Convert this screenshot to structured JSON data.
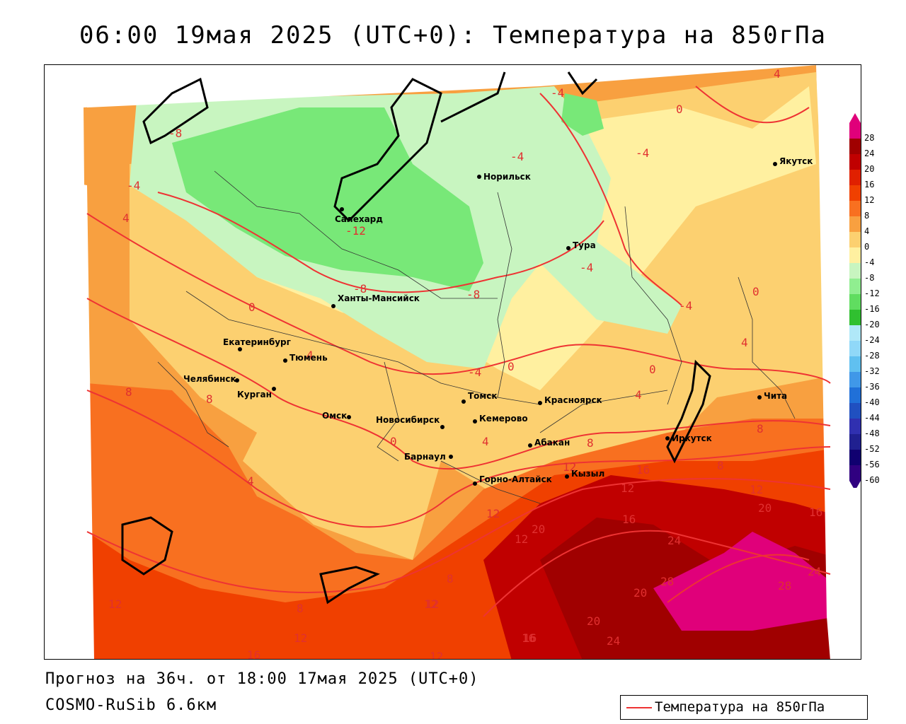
{
  "title": "06:00 19мая 2025 (UTC+0): Температура на 850гПа",
  "footer": {
    "forecast": "Прогноз на 36ч. от 18:00 17мая 2025 (UTC+0)",
    "model": "COSMO-RuSib 6.6км"
  },
  "legend": {
    "label": "Температура на 850гПа",
    "line_color": "#ee3333"
  },
  "colorbar": {
    "values": [
      "28",
      "24",
      "20",
      "16",
      "12",
      "8",
      "4",
      "0",
      "-4",
      "-8",
      "-12",
      "-16",
      "-20",
      "-24",
      "-28",
      "-32",
      "-36",
      "-40",
      "-44",
      "-48",
      "-52",
      "-56",
      "-60"
    ],
    "colors": [
      "#e0007a",
      "#a00000",
      "#c00000",
      "#e02000",
      "#f04000",
      "#f87020",
      "#f8a040",
      "#fcd070",
      "#fff0a0",
      "#c8f5c0",
      "#90ee90",
      "#60dd60",
      "#30c030",
      "#b0e8f8",
      "#90d8f8",
      "#60c0f0",
      "#4098e8",
      "#2070d8",
      "#2050c0",
      "#3030b0",
      "#202090",
      "#100070",
      "#300080"
    ]
  },
  "cities": [
    {
      "name": "Норильск"
    },
    {
      "name": "Якутск"
    },
    {
      "name": "Салехард"
    },
    {
      "name": "Тура"
    },
    {
      "name": "Ханты-Мансийск"
    },
    {
      "name": "Екатеринбург"
    },
    {
      "name": "Тюмень"
    },
    {
      "name": "Челябинск"
    },
    {
      "name": "Курган"
    },
    {
      "name": "Омск"
    },
    {
      "name": "Новосибирск"
    },
    {
      "name": "Томск"
    },
    {
      "name": "Кемерово"
    },
    {
      "name": "Красноярск"
    },
    {
      "name": "Абакан"
    },
    {
      "name": "Барнаул"
    },
    {
      "name": "Горно-Алтайск"
    },
    {
      "name": "Кызыл"
    },
    {
      "name": "Иркутск"
    },
    {
      "name": "Чита"
    }
  ],
  "isotherm_labels": [
    "4",
    "0",
    "-4",
    "-8",
    "-12",
    "-4",
    "4",
    "-4",
    "0",
    "-4",
    "-4",
    "-8",
    "-8",
    "0",
    "-4",
    "0",
    "-4",
    "0",
    "4",
    "4",
    "8",
    "8",
    "0",
    "4",
    "4",
    "8",
    "4",
    "8",
    "12",
    "16",
    "8",
    "12",
    "20",
    "12",
    "16",
    "20",
    "16",
    "24",
    "28",
    "24",
    "28",
    "20",
    "24",
    "20",
    "16",
    "8",
    "12",
    "12",
    "12",
    "16",
    "12",
    "8",
    "12",
    "16",
    "12",
    "12"
  ]
}
